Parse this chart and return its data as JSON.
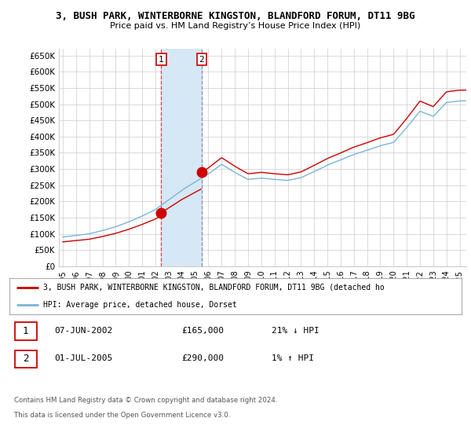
{
  "title": "3, BUSH PARK, WINTERBORNE KINGSTON, BLANDFORD FORUM, DT11 9BG",
  "subtitle": "Price paid vs. HM Land Registry’s House Price Index (HPI)",
  "ylabel_ticks": [
    "£0",
    "£50K",
    "£100K",
    "£150K",
    "£200K",
    "£250K",
    "£300K",
    "£350K",
    "£400K",
    "£450K",
    "£500K",
    "£550K",
    "£600K",
    "£650K"
  ],
  "ytick_values": [
    0,
    50000,
    100000,
    150000,
    200000,
    250000,
    300000,
    350000,
    400000,
    450000,
    500000,
    550000,
    600000,
    650000
  ],
  "sale1_date": 2002.44,
  "sale1_price": 165000,
  "sale2_date": 2005.5,
  "sale2_price": 290000,
  "sale1_display": "07-JUN-2002",
  "sale1_amount": "£165,000",
  "sale1_hpi": "21% ↓ HPI",
  "sale2_display": "01-JUL-2005",
  "sale2_amount": "£290,000",
  "sale2_hpi": "1% ↑ HPI",
  "hpi_line_color": "#7ab4d8",
  "price_line_color": "#cc0000",
  "shade_color": "#d6e8f5",
  "marker_color": "#cc0000",
  "vline1_color": "#dd4444",
  "vline2_color": "#8888aa",
  "legend_line1": "3, BUSH PARK, WINTERBORNE KINGSTON, BLANDFORD FORUM, DT11 9BG (detached ho",
  "legend_line2": "HPI: Average price, detached house, Dorset",
  "footer1": "Contains HM Land Registry data © Crown copyright and database right 2024.",
  "footer2": "This data is licensed under the Open Government Licence v3.0.",
  "xmin": 1994.7,
  "xmax": 2025.5,
  "ymin": 0,
  "ymax": 672000,
  "background_color": "#ffffff",
  "grid_color": "#cccccc",
  "box_color": "#cc0000"
}
